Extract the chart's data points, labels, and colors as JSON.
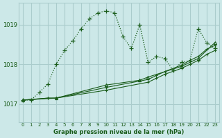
{
  "title": "Graphe pression niveau de la mer (hPa)",
  "bg_color": "#cce8e8",
  "grid_color": "#aacccc",
  "line_color": "#1a5c1a",
  "x_ticks": [
    0,
    1,
    2,
    3,
    4,
    5,
    6,
    7,
    8,
    9,
    10,
    11,
    12,
    13,
    14,
    15,
    16,
    17,
    18,
    19,
    20,
    21,
    22,
    23
  ],
  "y_ticks": [
    1017,
    1018,
    1019
  ],
  "ylim": [
    1016.55,
    1019.55
  ],
  "xlim": [
    -0.5,
    23.5
  ],
  "series": [
    {
      "x": [
        0,
        1,
        2,
        3,
        4,
        5,
        6,
        7,
        8,
        9,
        10,
        11,
        12,
        13,
        14,
        15,
        16,
        17,
        18,
        19,
        20,
        21,
        22,
        23
      ],
      "y": [
        1017.1,
        1017.1,
        1017.3,
        1017.5,
        1018.0,
        1018.35,
        1018.6,
        1018.9,
        1019.15,
        1019.3,
        1019.35,
        1019.3,
        1018.7,
        1018.4,
        1019.0,
        1018.05,
        1018.2,
        1018.15,
        1017.85,
        1018.05,
        1018.1,
        1018.9,
        1018.55,
        1018.4
      ],
      "linestyle": ":",
      "marker": "+"
    },
    {
      "x": [
        0,
        3,
        4,
        10,
        15,
        16,
        17,
        19,
        20,
        21,
        22,
        23
      ],
      "y": [
        1017.1,
        1017.15,
        1017.15,
        1017.35,
        1017.55,
        1017.65,
        1017.75,
        1017.9,
        1018.0,
        1018.1,
        1018.25,
        1018.35
      ],
      "linestyle": "-",
      "marker": "+"
    },
    {
      "x": [
        0,
        3,
        4,
        10,
        15,
        16,
        17,
        19,
        20,
        21,
        22,
        23
      ],
      "y": [
        1017.1,
        1017.15,
        1017.15,
        1017.42,
        1017.62,
        1017.72,
        1017.82,
        1017.98,
        1018.1,
        1018.2,
        1018.38,
        1018.48
      ],
      "linestyle": "-",
      "marker": "+"
    },
    {
      "x": [
        0,
        4,
        10,
        14,
        15,
        19,
        21,
        23
      ],
      "y": [
        1017.1,
        1017.15,
        1017.48,
        1017.6,
        1017.68,
        1017.95,
        1018.15,
        1018.55
      ],
      "linestyle": "-",
      "marker": "^"
    }
  ]
}
